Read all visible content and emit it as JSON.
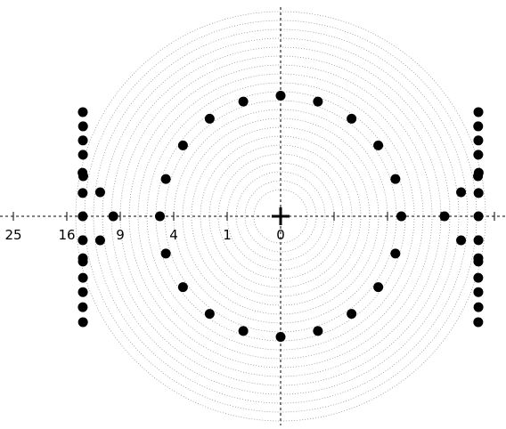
{
  "chart_data": {
    "type": "polar-scatter",
    "scale": "sqrt",
    "color": "#000000",
    "rlim": [
      0,
      25
    ],
    "rticks": [
      25,
      16,
      9,
      4,
      1,
      0
    ],
    "points": {
      "r": [
        5.1,
        5.1,
        5.1,
        5.1,
        5.1,
        5.1,
        5.1,
        5.1,
        5.1,
        5.1,
        5.1,
        5.1,
        5.1,
        5.1,
        5.1,
        5.1,
        5.1,
        5.1,
        5.1,
        5.1,
        9.8,
        9.4,
        17.5,
        16.5,
        15.7,
        15.0,
        14.4,
        14.2,
        13.9,
        13.7,
        13.9,
        14.3,
        14.4,
        15.0,
        15.7,
        16.6,
        17.6,
        11.6,
        11.6,
        17.5,
        16.5,
        15.7,
        15.0,
        14.4,
        14.2,
        13.9,
        13.7,
        13.9,
        14.3,
        14.4,
        15.0,
        15.7,
        16.6,
        17.6,
        11.6,
        11.6
      ],
      "theta": [
        0,
        18,
        36,
        54,
        72,
        90,
        108,
        126,
        144,
        162,
        180,
        198,
        216,
        234,
        252,
        270,
        288,
        306,
        324,
        342,
        180,
        0,
        152.2,
        155.5,
        159.0,
        162.7,
        167.6,
        168.5,
        173.3,
        180,
        186.9,
        192.0,
        192.9,
        197.3,
        201.0,
        204.7,
        208.2,
        172.4,
        187.6,
        27.8,
        24.5,
        21.0,
        17.3,
        12.4,
        11.5,
        6.7,
        0,
        353.1,
        348.0,
        347.1,
        342.7,
        339.0,
        335.3,
        331.8,
        7.6,
        352.4
      ]
    }
  }
}
